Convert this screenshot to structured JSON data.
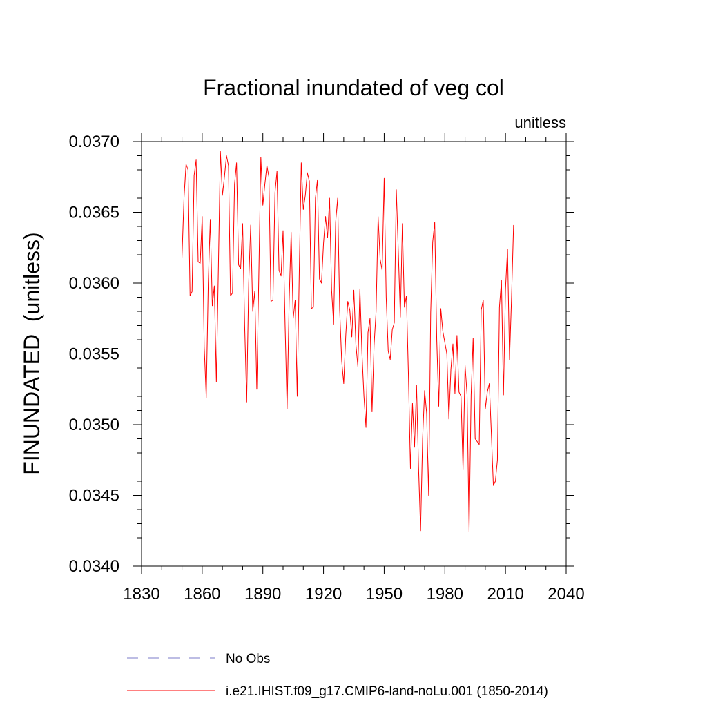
{
  "chart_data": {
    "type": "line",
    "title": "Fractional inundated of veg col",
    "units_label": "unitless",
    "ylabel": "FINUNDATED  (unitless)",
    "xlabel": "",
    "xlim": [
      1830,
      2040
    ],
    "ylim": [
      0.034,
      0.037
    ],
    "x_ticks": [
      1830,
      1860,
      1890,
      1920,
      1950,
      1980,
      2010,
      2040
    ],
    "x_tick_labels": [
      "1830",
      "1860",
      "1890",
      "1920",
      "1950",
      "1980",
      "2010",
      "2040"
    ],
    "y_ticks": [
      0.034,
      0.0345,
      0.035,
      0.0355,
      0.036,
      0.0365,
      0.037
    ],
    "y_tick_labels": [
      "0.0340",
      "0.0345",
      "0.0350",
      "0.0355",
      "0.0360",
      "0.0365",
      "0.0370"
    ],
    "grid": false,
    "legend_position": "bottom",
    "series": [
      {
        "name": "No Obs",
        "color": "#7b7bc8",
        "dash": "dashed",
        "x": [],
        "y": []
      },
      {
        "name": "i.e21.IHIST.f09_g17.CMIP6-land-noLu.001 (1850-2014)",
        "color": "#ff0000",
        "dash": "solid",
        "x": [
          1850,
          1851,
          1852,
          1853,
          1854,
          1855,
          1856,
          1857,
          1858,
          1859,
          1860,
          1861,
          1862,
          1863,
          1864,
          1865,
          1866,
          1867,
          1868,
          1869,
          1870,
          1871,
          1872,
          1873,
          1874,
          1875,
          1876,
          1877,
          1878,
          1879,
          1880,
          1881,
          1882,
          1883,
          1884,
          1885,
          1886,
          1887,
          1888,
          1889,
          1890,
          1891,
          1892,
          1893,
          1894,
          1895,
          1896,
          1897,
          1898,
          1899,
          1900,
          1901,
          1902,
          1903,
          1904,
          1905,
          1906,
          1907,
          1908,
          1909,
          1910,
          1911,
          1912,
          1913,
          1914,
          1915,
          1916,
          1917,
          1918,
          1919,
          1920,
          1921,
          1922,
          1923,
          1924,
          1925,
          1926,
          1927,
          1928,
          1929,
          1930,
          1931,
          1932,
          1933,
          1934,
          1935,
          1936,
          1937,
          1938,
          1939,
          1940,
          1941,
          1942,
          1943,
          1944,
          1945,
          1946,
          1947,
          1948,
          1949,
          1950,
          1951,
          1952,
          1953,
          1954,
          1955,
          1956,
          1957,
          1958,
          1959,
          1960,
          1961,
          1962,
          1963,
          1964,
          1965,
          1966,
          1967,
          1968,
          1969,
          1970,
          1971,
          1972,
          1973,
          1974,
          1975,
          1976,
          1977,
          1978,
          1979,
          1980,
          1981,
          1982,
          1983,
          1984,
          1985,
          1986,
          1987,
          1988,
          1989,
          1990,
          1991,
          1992,
          1993,
          1994,
          1995,
          1996,
          1997,
          1998,
          1999,
          2000,
          2001,
          2002,
          2003,
          2004,
          2005,
          2006,
          2007,
          2008,
          2009,
          2010,
          2011,
          2012,
          2013,
          2014
        ],
        "y": [
          0.03618,
          0.0366,
          0.03684,
          0.0368,
          0.03591,
          0.03594,
          0.03676,
          0.03687,
          0.03615,
          0.03614,
          0.03647,
          0.03555,
          0.03519,
          0.036,
          0.03645,
          0.03584,
          0.03598,
          0.0353,
          0.0361,
          0.03693,
          0.03662,
          0.03675,
          0.0369,
          0.03683,
          0.03591,
          0.03593,
          0.0367,
          0.03685,
          0.03613,
          0.0361,
          0.03642,
          0.0357,
          0.03516,
          0.036,
          0.03641,
          0.0358,
          0.03594,
          0.03525,
          0.03605,
          0.03689,
          0.03655,
          0.0367,
          0.03683,
          0.03675,
          0.03587,
          0.03588,
          0.03664,
          0.03679,
          0.03609,
          0.03605,
          0.03637,
          0.0357,
          0.03511,
          0.03587,
          0.03636,
          0.03575,
          0.03588,
          0.0352,
          0.03607,
          0.03685,
          0.03652,
          0.03662,
          0.03678,
          0.03672,
          0.03582,
          0.03583,
          0.0366,
          0.03673,
          0.03603,
          0.036,
          0.03628,
          0.03647,
          0.03632,
          0.0366,
          0.03595,
          0.03571,
          0.03643,
          0.0366,
          0.03581,
          0.03545,
          0.03529,
          0.03563,
          0.03587,
          0.03581,
          0.03562,
          0.03595,
          0.03557,
          0.03541,
          0.03596,
          0.03551,
          0.0352,
          0.03498,
          0.03565,
          0.03575,
          0.03509,
          0.03556,
          0.0358,
          0.03647,
          0.03617,
          0.03609,
          0.03674,
          0.0359,
          0.03552,
          0.03546,
          0.03567,
          0.03572,
          0.03666,
          0.03622,
          0.03576,
          0.03642,
          0.03583,
          0.03591,
          0.03535,
          0.03469,
          0.03515,
          0.03484,
          0.03528,
          0.0347,
          0.03425,
          0.0349,
          0.03524,
          0.03508,
          0.0345,
          0.03579,
          0.03629,
          0.03643,
          0.0356,
          0.03513,
          0.03582,
          0.03566,
          0.03558,
          0.0355,
          0.03504,
          0.03539,
          0.03557,
          0.03522,
          0.03563,
          0.03523,
          0.0352,
          0.03468,
          0.03542,
          0.03521,
          0.03424,
          0.03521,
          0.03561,
          0.0349,
          0.03488,
          0.03486,
          0.03581,
          0.03588,
          0.03511,
          0.03523,
          0.03529,
          0.03494,
          0.03457,
          0.0346,
          0.03475,
          0.03583,
          0.03602,
          0.03521,
          0.03596,
          0.03624,
          0.03546,
          0.0359,
          0.03641
        ]
      }
    ]
  }
}
